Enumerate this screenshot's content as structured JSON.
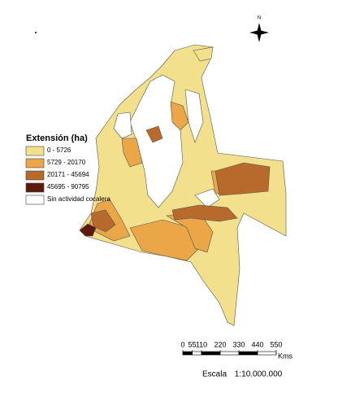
{
  "legend": {
    "title": "Extensión (ha)",
    "items": [
      {
        "label": "0 - 5726",
        "color": "#f3e08c"
      },
      {
        "label": "5729 - 20170",
        "color": "#eaa647"
      },
      {
        "label": "20171 - 45694",
        "color": "#b76a2c"
      },
      {
        "label": "45695 - 90795",
        "color": "#5c1a0f"
      },
      {
        "label": "Sin actividad cocalera",
        "color": "#ffffff"
      }
    ]
  },
  "north": "N",
  "scale": {
    "ticks": [
      0,
      55,
      110,
      220,
      330,
      440,
      550
    ],
    "unit": "Kms",
    "caption": "Escala",
    "ratio": "1:10.000.000"
  }
}
